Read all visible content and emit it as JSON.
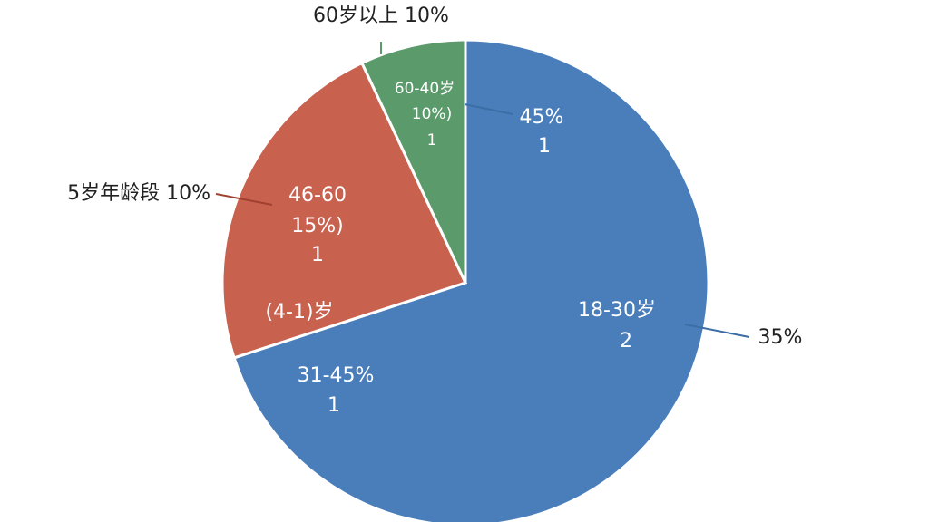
{
  "chart_data": {
    "type": "pie",
    "values": [
      70,
      23,
      7
    ],
    "colors": [
      "#4a7ebb",
      "#c9614f",
      "#5b9b6b"
    ],
    "annotations": [
      "60岁以上 10%",
      "60-40岁",
      "10%)",
      "1",
      "45%",
      "1",
      "5岁年龄段 10%",
      "46-60",
      "15%)",
      "1",
      "(4-1)岁",
      "31-45%",
      "1",
      "18-30岁",
      "2",
      "35%"
    ]
  }
}
